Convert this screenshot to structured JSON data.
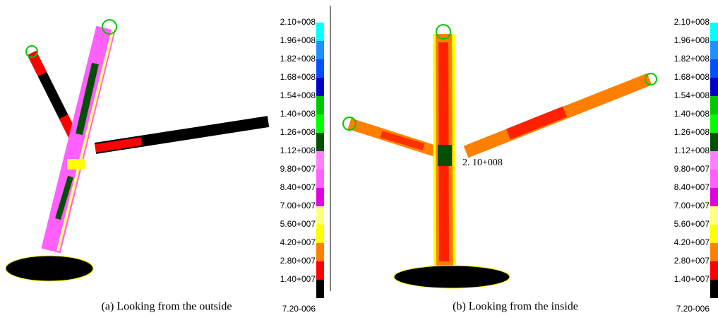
{
  "panels": [
    {
      "legend": {
        "labels": [
          "2.10+008",
          "1.96+008",
          "1.82+008",
          "1.68+008",
          "1.54+008",
          "1.40+008",
          "1.26+008",
          "1.12+008",
          "9.80+007",
          "8.40+007",
          "7.00+007",
          "5.60+007",
          "4.20+007",
          "2.80+007",
          "1.40+007",
          "7.20-006"
        ],
        "colors": [
          "#00ffff",
          "#1e90ff",
          "#0050ff",
          "#0000c8",
          "#00c800",
          "#00ff00",
          "#005000",
          "#ff80ff",
          "#ff60ff",
          "#e000e0",
          "#ffff80",
          "#ffff00",
          "#ff8000",
          "#ff0000",
          "#000000"
        ]
      },
      "caption": "(a) Looking from the outside"
    },
    {
      "legend": {
        "labels": [
          "2.10+008",
          "1.96+008",
          "1.82+008",
          "1.68+008",
          "1.54+008",
          "1.40+008",
          "1.26+008",
          "1.12+008",
          "9.80+007",
          "8.40+007",
          "7.00+007",
          "5.60+007",
          "4.20+007",
          "2.80+007",
          "1.40+007",
          "7.20-006"
        ],
        "colors": [
          "#00ffff",
          "#1e90ff",
          "#0050ff",
          "#0000c8",
          "#00c800",
          "#00ff00",
          "#005000",
          "#ff80ff",
          "#ff60ff",
          "#e000e0",
          "#ffff80",
          "#ffff00",
          "#ff8000",
          "#ff0000",
          "#000000"
        ]
      },
      "annotation": "2. 10+008",
      "caption": "(b) Looking from the inside"
    }
  ]
}
